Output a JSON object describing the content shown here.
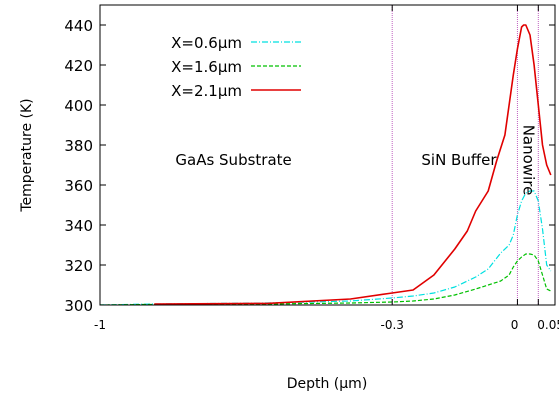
{
  "chart_data": {
    "type": "line",
    "xlabel": "Depth (µm)",
    "ylabel": "Temperature (K)",
    "xlim": [
      -1.0,
      0.09
    ],
    "ylim": [
      300,
      450
    ],
    "x_ticks": [
      {
        "value": -1,
        "label": "-1"
      },
      {
        "value": -0.3,
        "label": "-0.3"
      },
      {
        "value": 0,
        "label": "0"
      },
      {
        "value": 0.05,
        "label": "0.05"
      }
    ],
    "y_ticks": [
      300,
      320,
      340,
      360,
      380,
      400,
      420,
      440
    ],
    "region_boundaries": [
      -0.3,
      0,
      0.05
    ],
    "region_labels": [
      {
        "text": "GaAs Substrate",
        "x": -0.68,
        "y": 370
      },
      {
        "text": "SiN Buffer",
        "x": -0.14,
        "y": 370
      },
      {
        "text": "Nanowire",
        "x": 0.027,
        "y": 370,
        "rotated": true
      }
    ],
    "legend_position": "top-left",
    "series": [
      {
        "name": "X=0.6µm",
        "color": "#00e0e0",
        "dash": "dash-dot",
        "points": [
          [
            -1.0,
            300
          ],
          [
            -0.87,
            300.5
          ],
          [
            -0.6,
            301
          ],
          [
            -0.4,
            302
          ],
          [
            -0.3,
            303.5
          ],
          [
            -0.25,
            304.5
          ],
          [
            -0.2,
            306
          ],
          [
            -0.15,
            309
          ],
          [
            -0.1,
            314
          ],
          [
            -0.07,
            318
          ],
          [
            -0.04,
            326
          ],
          [
            -0.02,
            330
          ],
          [
            -0.01,
            335
          ],
          [
            0.0,
            345
          ],
          [
            0.01,
            352
          ],
          [
            0.02,
            356
          ],
          [
            0.03,
            357
          ],
          [
            0.04,
            357
          ],
          [
            0.05,
            352
          ],
          [
            0.06,
            338
          ],
          [
            0.07,
            320
          ],
          [
            0.08,
            317
          ]
        ]
      },
      {
        "name": "X=1.6µm",
        "color": "#00c000",
        "dash": "dashed",
        "points": [
          [
            -1.0,
            300
          ],
          [
            -0.87,
            300.3
          ],
          [
            -0.6,
            300.5
          ],
          [
            -0.4,
            301
          ],
          [
            -0.3,
            301.5
          ],
          [
            -0.25,
            302
          ],
          [
            -0.2,
            303
          ],
          [
            -0.15,
            305
          ],
          [
            -0.1,
            308
          ],
          [
            -0.07,
            310
          ],
          [
            -0.04,
            312
          ],
          [
            -0.02,
            315
          ],
          [
            -0.01,
            319
          ],
          [
            0.0,
            322
          ],
          [
            0.01,
            324
          ],
          [
            0.02,
            325.5
          ],
          [
            0.03,
            325.5
          ],
          [
            0.04,
            325
          ],
          [
            0.05,
            322
          ],
          [
            0.06,
            315
          ],
          [
            0.07,
            308
          ],
          [
            0.08,
            307
          ]
        ]
      },
      {
        "name": "X=2.1µm",
        "color": "#e00000",
        "dash": "solid",
        "points": [
          [
            -0.87,
            300.5
          ],
          [
            -0.6,
            300.8
          ],
          [
            -0.4,
            303
          ],
          [
            -0.3,
            306
          ],
          [
            -0.25,
            307.5
          ],
          [
            -0.2,
            315
          ],
          [
            -0.15,
            328
          ],
          [
            -0.12,
            337
          ],
          [
            -0.11,
            342
          ],
          [
            -0.1,
            347
          ],
          [
            -0.07,
            357
          ],
          [
            -0.05,
            372
          ],
          [
            -0.03,
            385
          ],
          [
            -0.02,
            400
          ],
          [
            -0.01,
            415
          ],
          [
            0.0,
            428
          ],
          [
            0.01,
            439
          ],
          [
            0.015,
            440
          ],
          [
            0.02,
            440
          ],
          [
            0.03,
            435
          ],
          [
            0.04,
            420
          ],
          [
            0.05,
            400
          ],
          [
            0.06,
            380
          ],
          [
            0.07,
            370
          ],
          [
            0.08,
            365
          ]
        ]
      }
    ]
  }
}
